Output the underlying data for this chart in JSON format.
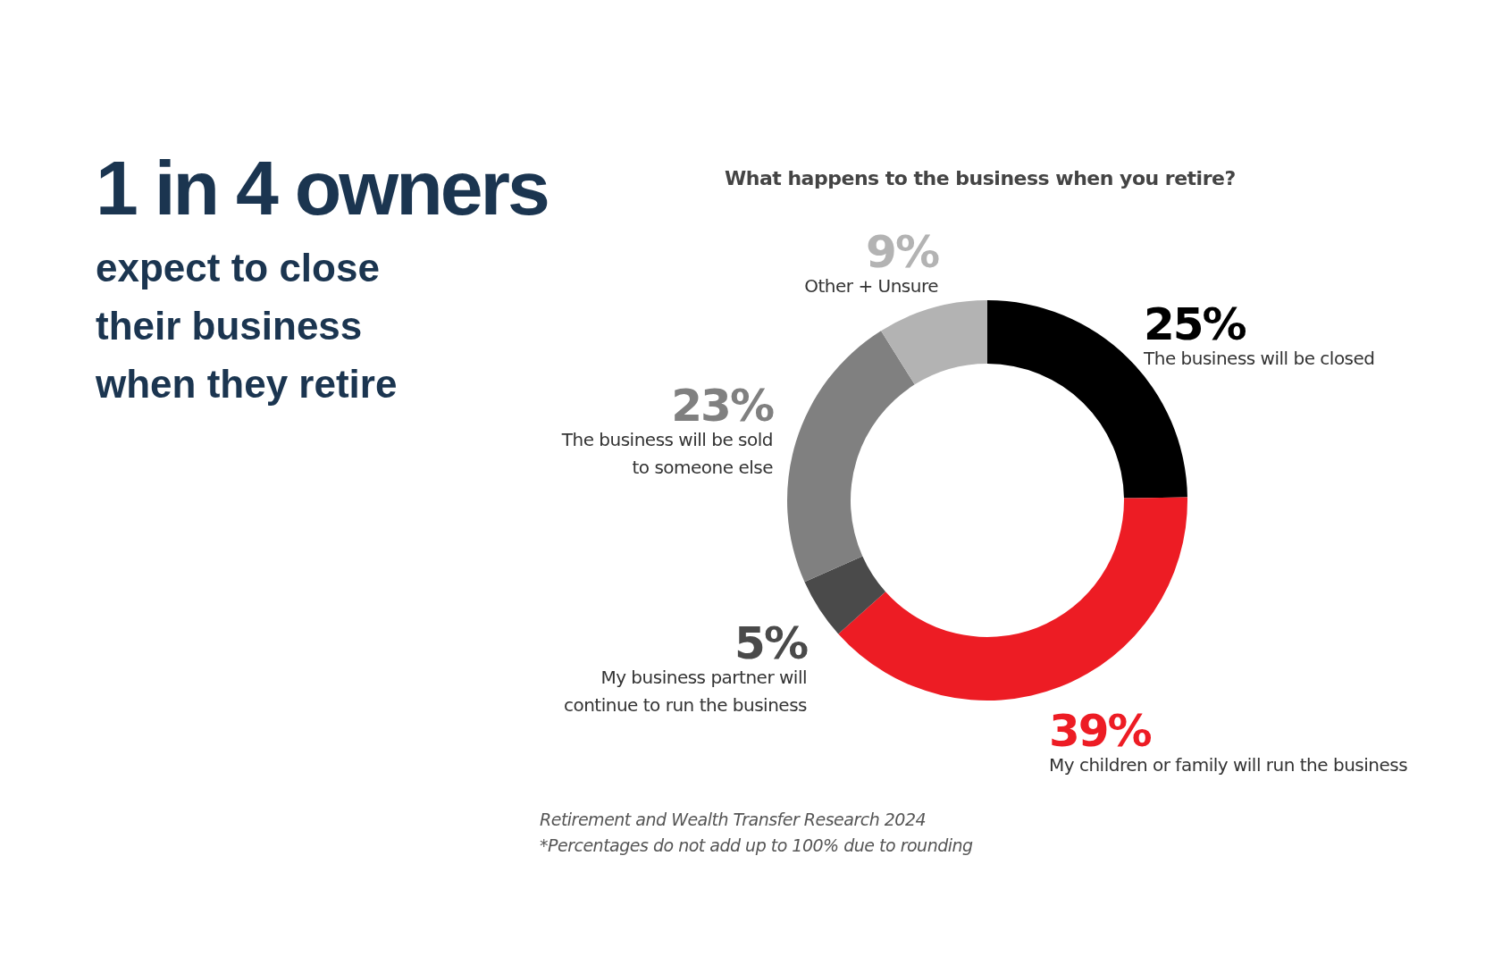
{
  "chart_data": {
    "type": "donut",
    "title": "1 in 4 owners",
    "subtitle": "expect to close their business when they retire",
    "categories": [
      "The business will be closed",
      "My children or family will run the business",
      "My business partner will continue to run the business",
      "The business will be sold to someone else",
      "Other + Unsure"
    ],
    "values": [
      25,
      39,
      5,
      23,
      9
    ],
    "value_labels": [
      "25%",
      "39%",
      "5%",
      "23%",
      "9%"
    ],
    "colors": [
      "#000000",
      "#ed1c24",
      "#4a4a4a",
      "#808080",
      "#b3b3b3"
    ],
    "annotations": [
      "What happens to the business when you retire?",
      "Retirement and Wealth Transfer Research 2024",
      "*Percentages do not add up to 100% due to rounding"
    ]
  }
}
